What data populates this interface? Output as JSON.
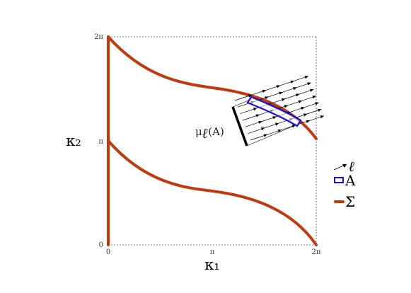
{
  "axes": {
    "x_label": "κ₁",
    "y_label": "κ₂",
    "x_ticks": [
      "0",
      "π",
      "2π"
    ],
    "y_ticks": [
      "0",
      "π",
      "2π"
    ]
  },
  "annotation": {
    "measure_label": "μ",
    "measure_sub": "ℓ",
    "measure_arg": "(A)"
  },
  "legend": [
    {
      "symbol": "arrow",
      "label": "ℓ"
    },
    {
      "symbol": "rect",
      "label": "A"
    },
    {
      "symbol": "line",
      "label": "Σ"
    }
  ],
  "colors": {
    "curve": "#c0390f",
    "region_A": "#1a12d6",
    "arrows": "#000000",
    "frame": "#555555"
  }
}
